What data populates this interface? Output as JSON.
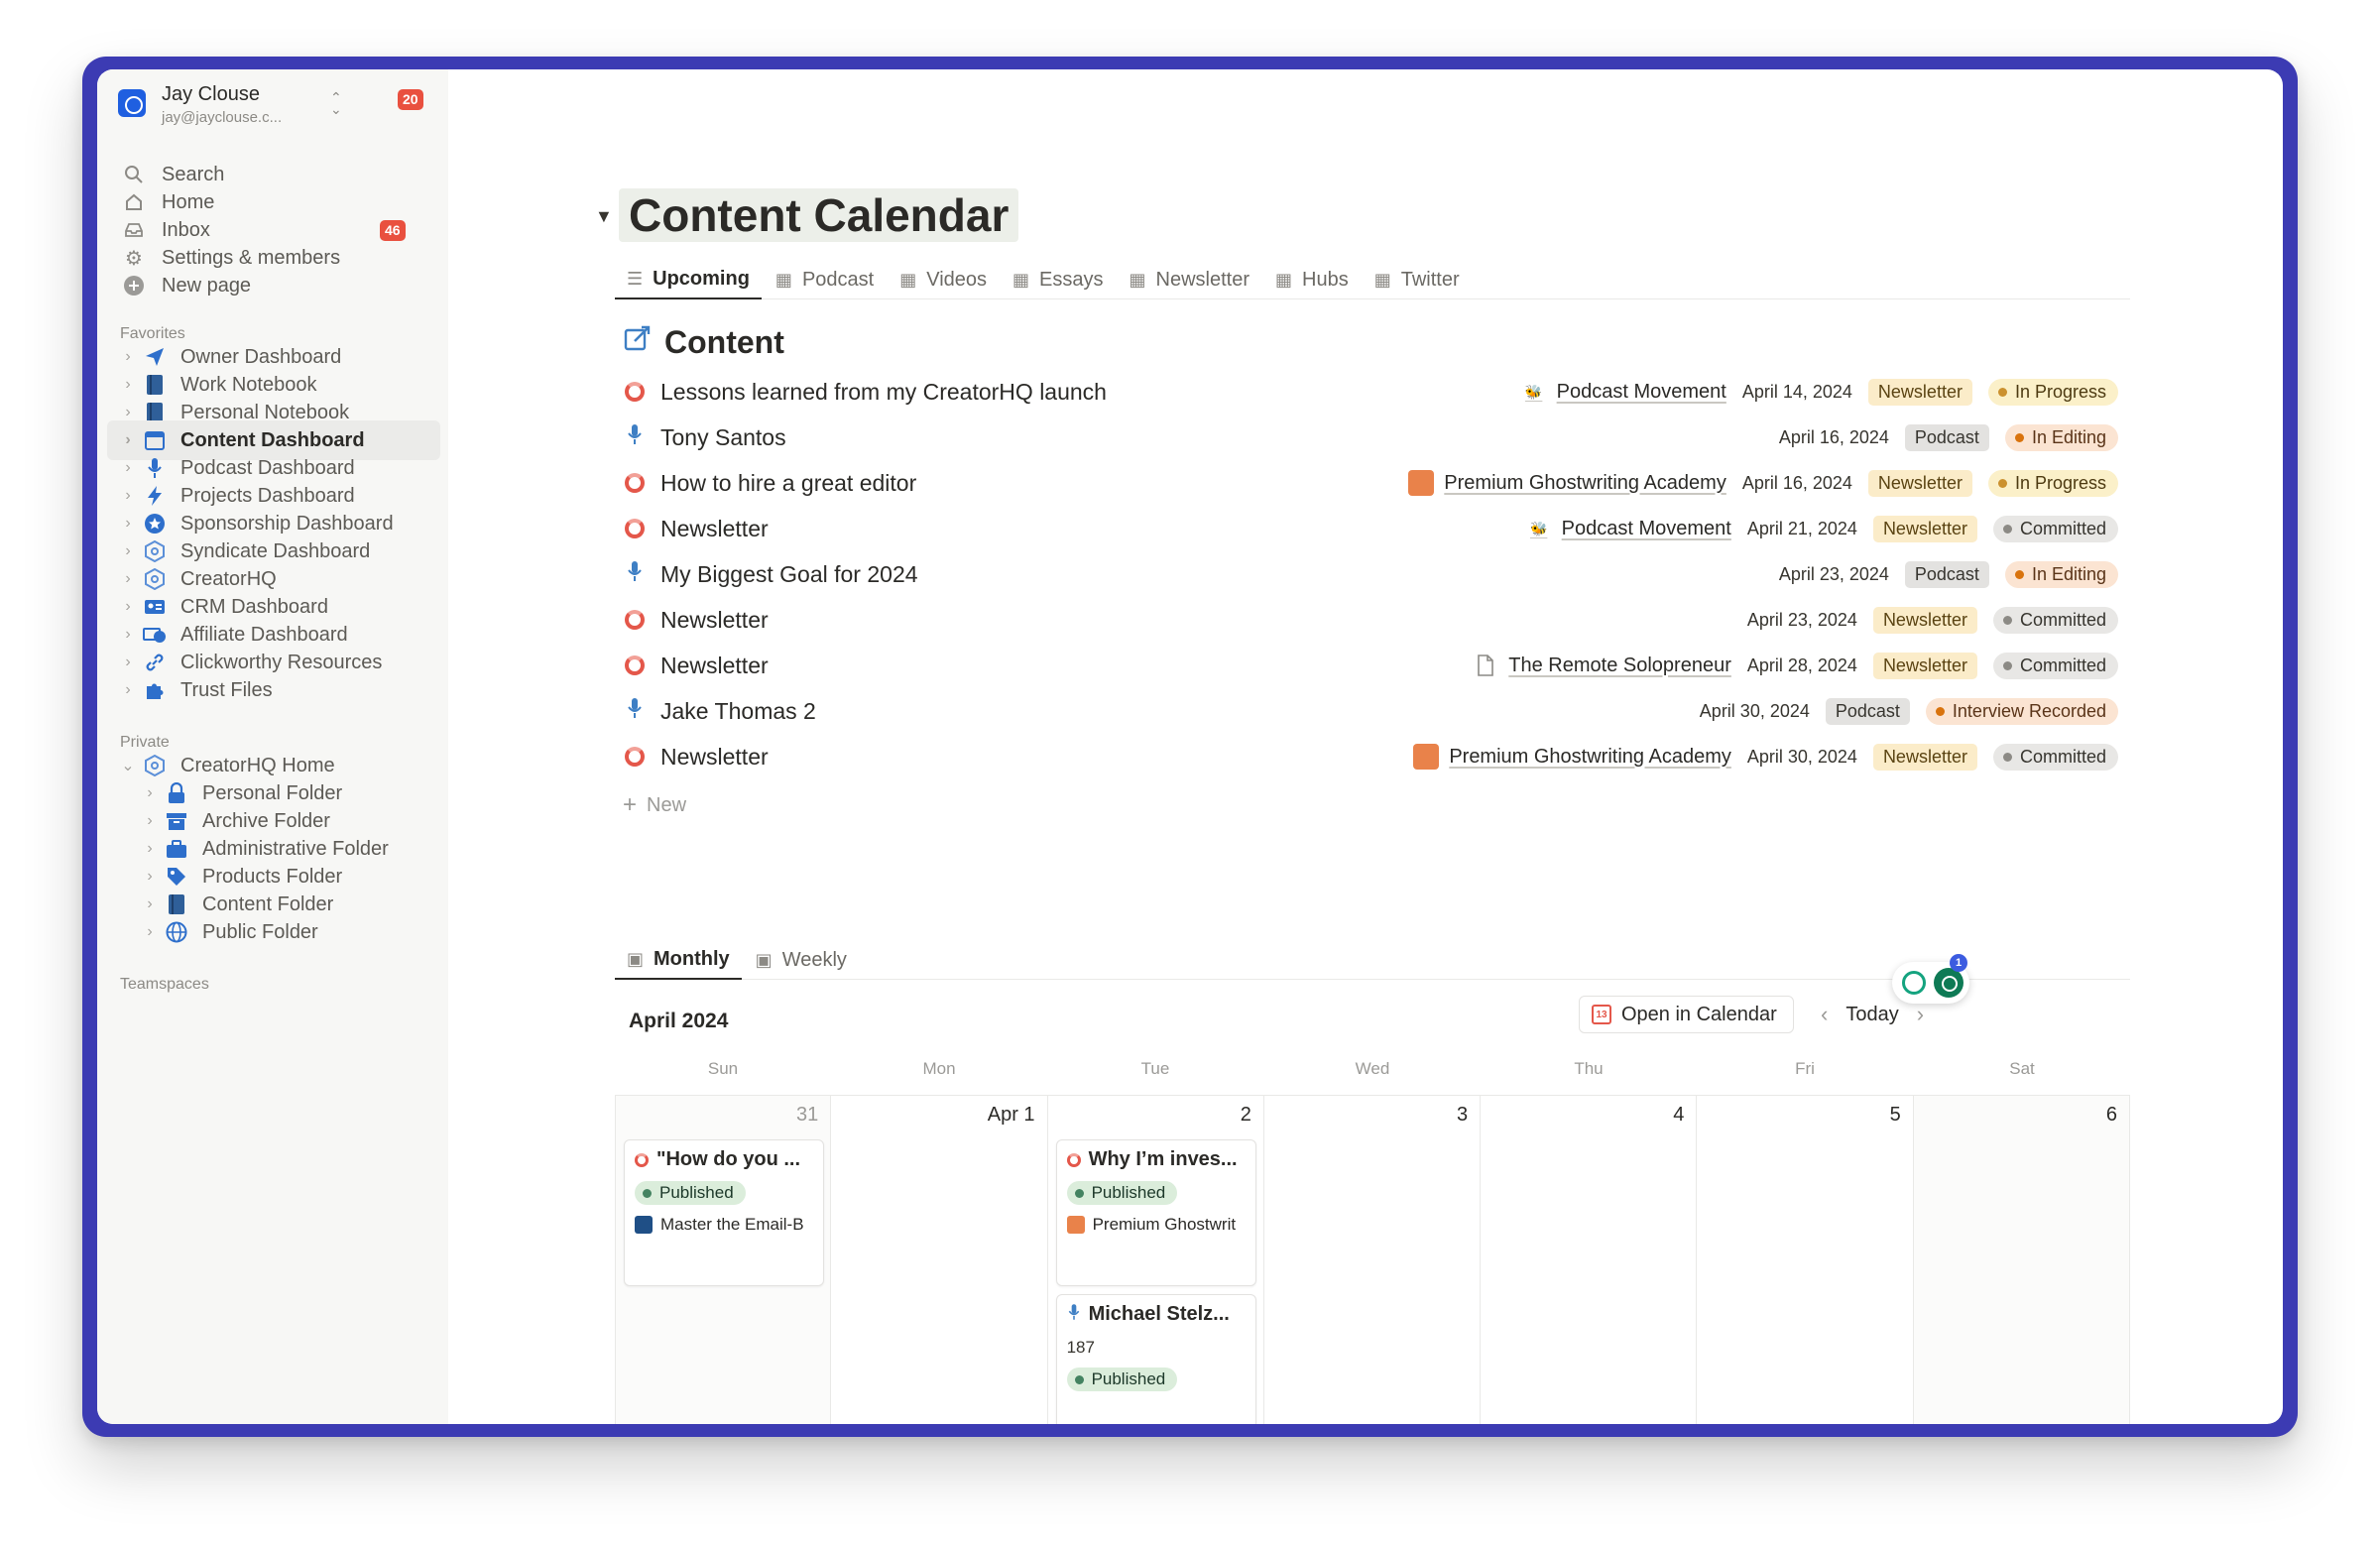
{
  "workspace": {
    "name": "Jay Clouse",
    "email": "jay@jayclouse.c...",
    "badge": "20"
  },
  "sidebar": {
    "top_items": [
      {
        "label": "Search",
        "icon": "search-icon"
      },
      {
        "label": "Home",
        "icon": "home-icon"
      },
      {
        "label": "Inbox",
        "icon": "inbox-icon",
        "badge": "46"
      },
      {
        "label": "Settings & members",
        "icon": "gear-icon"
      },
      {
        "label": "New page",
        "icon": "plus-circle-icon"
      }
    ],
    "favorites_label": "Favorites",
    "favorites": [
      {
        "label": "Owner Dashboard",
        "icon": "paper-plane-icon"
      },
      {
        "label": "Work Notebook",
        "icon": "notebook-icon"
      },
      {
        "label": "Personal Notebook",
        "icon": "notebook-icon"
      },
      {
        "label": "Content Dashboard",
        "icon": "calendar-icon",
        "active": true
      },
      {
        "label": "Podcast Dashboard",
        "icon": "microphone-icon"
      },
      {
        "label": "Projects Dashboard",
        "icon": "lightning-icon"
      },
      {
        "label": "Sponsorship Dashboard",
        "icon": "star-badge-icon"
      },
      {
        "label": "Syndicate Dashboard",
        "icon": "cube-icon"
      },
      {
        "label": "CreatorHQ",
        "icon": "cube-icon"
      },
      {
        "label": "CRM Dashboard",
        "icon": "contact-card-icon"
      },
      {
        "label": "Affiliate Dashboard",
        "icon": "money-icon"
      },
      {
        "label": "Clickworthy Resources",
        "icon": "link-icon"
      },
      {
        "label": "Trust Files",
        "icon": "puzzle-icon"
      }
    ],
    "private_label": "Private",
    "private": [
      {
        "label": "CreatorHQ Home",
        "icon": "cube-icon",
        "expanded": true
      },
      {
        "label": "Personal Folder",
        "icon": "lock-icon",
        "sub": true
      },
      {
        "label": "Archive Folder",
        "icon": "archive-icon",
        "sub": true
      },
      {
        "label": "Administrative Folder",
        "icon": "briefcase-icon",
        "sub": true
      },
      {
        "label": "Products Folder",
        "icon": "tag-icon",
        "sub": true
      },
      {
        "label": "Content Folder",
        "icon": "notebook-icon",
        "sub": true
      },
      {
        "label": "Public Folder",
        "icon": "globe-icon",
        "sub": true
      }
    ],
    "teamspaces_label": "Teamspaces"
  },
  "page": {
    "title": "Content Calendar"
  },
  "view_tabs": [
    {
      "label": "Upcoming",
      "icon": "list-icon",
      "active": true
    },
    {
      "label": "Podcast",
      "icon": "table-icon"
    },
    {
      "label": "Videos",
      "icon": "table-icon"
    },
    {
      "label": "Essays",
      "icon": "table-icon"
    },
    {
      "label": "Newsletter",
      "icon": "table-icon"
    },
    {
      "label": "Hubs",
      "icon": "table-icon"
    },
    {
      "label": "Twitter",
      "icon": "table-icon"
    }
  ],
  "content": {
    "heading": "Content",
    "new_label": "New",
    "rows": [
      {
        "title": "Lessons learned from my CreatorHQ launch",
        "kind": "newsletter",
        "relation": "Podcast Movement",
        "date": "April 14, 2024",
        "type": "Newsletter",
        "status": "In Progress"
      },
      {
        "title": "Tony Santos",
        "kind": "podcast",
        "relation": "",
        "date": "April 16, 2024",
        "type": "Podcast",
        "status": "In Editing"
      },
      {
        "title": "How to hire a great editor",
        "kind": "newsletter",
        "relation": "Premium Ghostwriting Academy",
        "date": "April 16, 2024",
        "type": "Newsletter",
        "status": "In Progress"
      },
      {
        "title": "Newsletter",
        "kind": "newsletter",
        "relation": "Podcast Movement",
        "date": "April 21, 2024",
        "type": "Newsletter",
        "status": "Committed"
      },
      {
        "title": "My Biggest Goal for 2024",
        "kind": "podcast",
        "relation": "",
        "date": "April 23, 2024",
        "type": "Podcast",
        "status": "In Editing"
      },
      {
        "title": "Newsletter",
        "kind": "newsletter",
        "relation": "",
        "date": "April 23, 2024",
        "type": "Newsletter",
        "status": "Committed"
      },
      {
        "title": "Newsletter",
        "kind": "newsletter",
        "relation": "The Remote Solopreneur",
        "date": "April 28, 2024",
        "type": "Newsletter",
        "status": "Committed"
      },
      {
        "title": "Jake Thomas 2",
        "kind": "podcast",
        "relation": "",
        "date": "April 30, 2024",
        "type": "Podcast",
        "status": "Interview Recorded"
      },
      {
        "title": "Newsletter",
        "kind": "newsletter",
        "relation": "Premium Ghostwriting Academy",
        "date": "April 30, 2024",
        "type": "Newsletter",
        "status": "Committed"
      }
    ]
  },
  "calendar": {
    "tabs": [
      {
        "label": "Monthly",
        "icon": "calendar-icon",
        "active": true
      },
      {
        "label": "Weekly",
        "icon": "calendar-icon"
      }
    ],
    "month": "April 2024",
    "open_label": "Open in Calendar",
    "today_label": "Today",
    "weekdays": [
      "Sun",
      "Mon",
      "Tue",
      "Wed",
      "Thu",
      "Fri",
      "Sat"
    ],
    "days": [
      {
        "num": "31",
        "muted": true,
        "shade": true
      },
      {
        "num": "Apr 1"
      },
      {
        "num": "2"
      },
      {
        "num": "3"
      },
      {
        "num": "4"
      },
      {
        "num": "5"
      },
      {
        "num": "6",
        "shade": true
      }
    ],
    "cards": {
      "c0": {
        "title": "\"How do you ...",
        "status": "Published",
        "relation": "Master the Email-B"
      },
      "c2a": {
        "title": "Why I’m inves...",
        "status": "Published",
        "relation": "Premium Ghostwrit"
      },
      "c2b": {
        "title": "Michael Stelz...",
        "number": "187",
        "status": "Published"
      }
    }
  },
  "widget": {
    "badge": "1"
  },
  "colors": {
    "accent": "#3c3bb3",
    "newsletter_ring": "#e4574a",
    "podcast_mic": "#3e7fc4"
  }
}
